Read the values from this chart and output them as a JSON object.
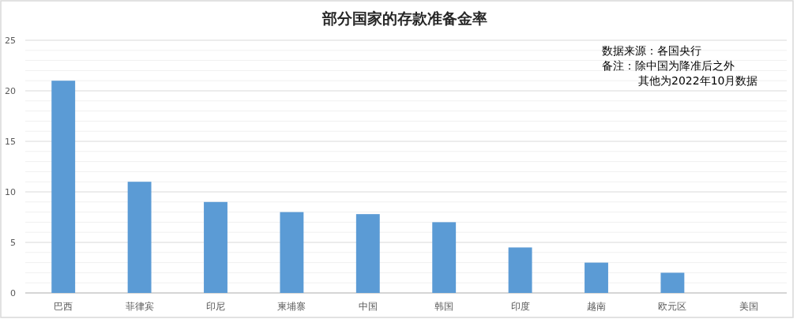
{
  "chart_data": {
    "type": "bar",
    "title": "部分国家的存款准备金率",
    "categories": [
      "巴西",
      "菲律宾",
      "印尼",
      "柬埔寨",
      "中国",
      "韩国",
      "印度",
      "越南",
      "欧元区",
      "美国"
    ],
    "values": [
      21,
      11,
      9,
      8,
      7.8,
      7,
      4.5,
      3,
      2,
      0
    ],
    "color": "#5b9bd5",
    "ylim": [
      0,
      25
    ],
    "yticks": [
      0,
      5,
      10,
      15,
      20,
      25
    ],
    "grid": "y",
    "legend": false,
    "annotations": [
      "数据来源：各国央行",
      "备注：除中国为降准后之外",
      "其他为2022年10月数据"
    ]
  }
}
